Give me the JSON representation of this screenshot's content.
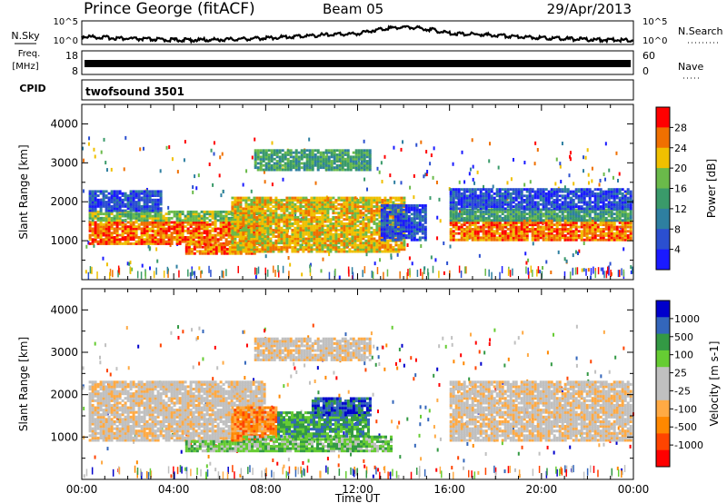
{
  "header": {
    "station": "Prince George (fitACF)",
    "beam": "Beam 05",
    "date": "29/Apr/2013"
  },
  "noise_panel": {
    "left_label": "N.Sky",
    "right_label": "N.Search",
    "left_ticks": [
      "10^5",
      "10^0"
    ],
    "right_ticks": [
      "10^5",
      "10^0"
    ]
  },
  "freq_panel": {
    "left_label": "Freq.",
    "left_unit": "[MHz]",
    "right_label": "Nave",
    "left_ticks": [
      "18",
      "8"
    ],
    "right_ticks": [
      "60",
      "0"
    ]
  },
  "cpid_panel": {
    "label": "CPID",
    "program": "twofsound 3501"
  },
  "colors": {
    "power_scale": [
      "#1a1aff",
      "#2b4fd0",
      "#2e7fa0",
      "#3a9a6a",
      "#6aba4a",
      "#f0c000",
      "#f07000",
      "#ff0000"
    ],
    "velocity_scale": [
      "#ff0000",
      "#ff4400",
      "#ff8800",
      "#ffaa44",
      "#c0c0c0",
      "#c0c0c0",
      "#66cc33",
      "#339944",
      "#3366bb",
      "#0000cc"
    ]
  },
  "chart_data": [
    {
      "type": "heatmap",
      "name": "power",
      "ylabel": "Slant Range [km]",
      "yticks": [
        "1000",
        "2000",
        "3000",
        "4000"
      ],
      "ylim": [
        0,
        4500
      ],
      "xticks": [
        "00:00",
        "04:00",
        "08:00",
        "12:00",
        "16:00",
        "20:00",
        "00:00"
      ],
      "colorbar_label": "Power [dB]",
      "colorbar_ticks": [
        "4",
        "8",
        "12",
        "16",
        "20",
        "24",
        "28"
      ],
      "bands": [
        {
          "t0": 0.3,
          "t1": 8.0,
          "r0": 900,
          "r1": 1500,
          "level": 6
        },
        {
          "t0": 0.3,
          "t1": 8.0,
          "r0": 1500,
          "r1": 1750,
          "level": 4
        },
        {
          "t0": 0.3,
          "t1": 3.5,
          "r0": 1750,
          "r1": 2300,
          "level": 1
        },
        {
          "t0": 4.5,
          "t1": 7.5,
          "r0": 650,
          "r1": 900,
          "level": 6
        },
        {
          "t0": 6.5,
          "t1": 14.0,
          "r0": 700,
          "r1": 2100,
          "level": 5
        },
        {
          "t0": 7.5,
          "t1": 12.5,
          "r0": 2800,
          "r1": 3300,
          "level": 3
        },
        {
          "t0": 13.0,
          "t1": 15.0,
          "r0": 1000,
          "r1": 1900,
          "level": 1
        },
        {
          "t0": 16.0,
          "t1": 23.9,
          "r0": 1000,
          "r1": 1500,
          "level": 6
        },
        {
          "t0": 16.0,
          "t1": 23.9,
          "r0": 1500,
          "r1": 1800,
          "level": 3
        },
        {
          "t0": 16.0,
          "t1": 23.9,
          "r0": 1800,
          "r1": 2300,
          "level": 1
        }
      ]
    },
    {
      "type": "heatmap",
      "name": "velocity",
      "ylabel": "Slant Range [km]",
      "yticks": [
        "1000",
        "2000",
        "3000",
        "4000"
      ],
      "ylim": [
        0,
        4500
      ],
      "xticks": [
        "00:00",
        "04:00",
        "08:00",
        "12:00",
        "16:00",
        "20:00",
        "00:00"
      ],
      "xlabel": "Time UT",
      "colorbar_label": "Velocity [m s-1]",
      "colorbar_ticks": [
        "1000",
        "500",
        "100",
        "25",
        "-25",
        "-100",
        "-500",
        "-1000"
      ],
      "bands": [
        {
          "t0": 0.3,
          "t1": 8.0,
          "r0": 900,
          "r1": 2300,
          "level": 4
        },
        {
          "t0": 4.5,
          "t1": 7.0,
          "r0": 650,
          "r1": 900,
          "level": 6
        },
        {
          "t0": 6.5,
          "t1": 8.5,
          "r0": 900,
          "r1": 1700,
          "level": 2
        },
        {
          "t0": 7.0,
          "t1": 13.5,
          "r0": 650,
          "r1": 1000,
          "level": 6
        },
        {
          "t0": 8.5,
          "t1": 12.5,
          "r0": 1000,
          "r1": 1600,
          "level": 7
        },
        {
          "t0": 10.0,
          "t1": 12.5,
          "r0": 1500,
          "r1": 1900,
          "level": 8
        },
        {
          "t0": 7.5,
          "t1": 12.5,
          "r0": 2800,
          "r1": 3300,
          "level": 4
        },
        {
          "t0": 16.0,
          "t1": 23.9,
          "r0": 900,
          "r1": 2300,
          "level": 4
        }
      ]
    }
  ]
}
